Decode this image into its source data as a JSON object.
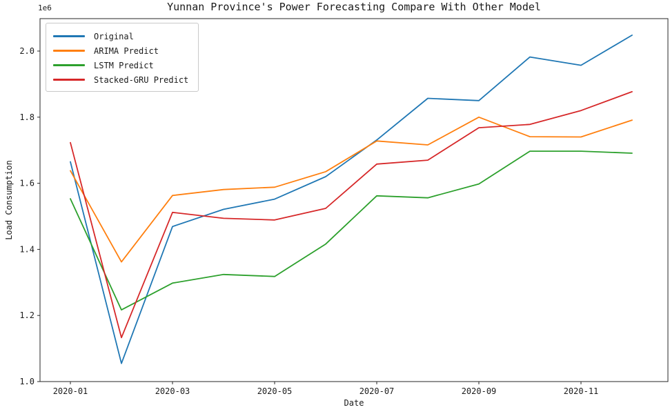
{
  "chart_data": {
    "type": "line",
    "title": "Yunnan Province's Power Forecasting Compare With Other Model",
    "xlabel": "Date",
    "ylabel": "Load Consumption",
    "y_offset_text": "1e6",
    "x": [
      "2020-01",
      "2020-02",
      "2020-03",
      "2020-04",
      "2020-05",
      "2020-06",
      "2020-07",
      "2020-08",
      "2020-09",
      "2020-10",
      "2020-11",
      "2020-12"
    ],
    "x_tick_indices": [
      0,
      2,
      4,
      6,
      8,
      10
    ],
    "x_tick_labels": [
      "2020-01",
      "2020-03",
      "2020-05",
      "2020-07",
      "2020-09",
      "2020-11"
    ],
    "y_ticks": [
      1.0,
      1.2,
      1.4,
      1.6,
      1.8,
      2.0
    ],
    "y_tick_labels": [
      "1.0",
      "1.2",
      "1.4",
      "1.6",
      "1.8",
      "2.0"
    ],
    "ylim": [
      1.0,
      2.098
    ],
    "grid": false,
    "legend_position": "upper left",
    "series": [
      {
        "name": "Original",
        "color": "#1f77b4",
        "values": [
          1.665,
          1.055,
          1.469,
          1.521,
          1.552,
          1.62,
          1.731,
          1.857,
          1.85,
          1.982,
          1.957,
          2.048
        ]
      },
      {
        "name": "ARIMA Predict",
        "color": "#ff7f0e",
        "values": [
          1.638,
          1.362,
          1.563,
          1.581,
          1.588,
          1.635,
          1.728,
          1.716,
          1.8,
          1.741,
          1.74,
          1.791
        ]
      },
      {
        "name": "LSTM Predict",
        "color": "#2ca02c",
        "values": [
          1.553,
          1.217,
          1.298,
          1.324,
          1.318,
          1.416,
          1.562,
          1.556,
          1.598,
          1.697,
          1.697,
          1.691
        ]
      },
      {
        "name": "Stacked-GRU Predict",
        "color": "#d62728",
        "values": [
          1.723,
          1.133,
          1.512,
          1.494,
          1.489,
          1.524,
          1.658,
          1.67,
          1.768,
          1.778,
          1.82,
          1.877
        ]
      }
    ]
  },
  "colors": {
    "background": "#ffffff",
    "axis": "#262626",
    "text": "#1a1a1a",
    "legend_border": "#c9c9c9"
  }
}
